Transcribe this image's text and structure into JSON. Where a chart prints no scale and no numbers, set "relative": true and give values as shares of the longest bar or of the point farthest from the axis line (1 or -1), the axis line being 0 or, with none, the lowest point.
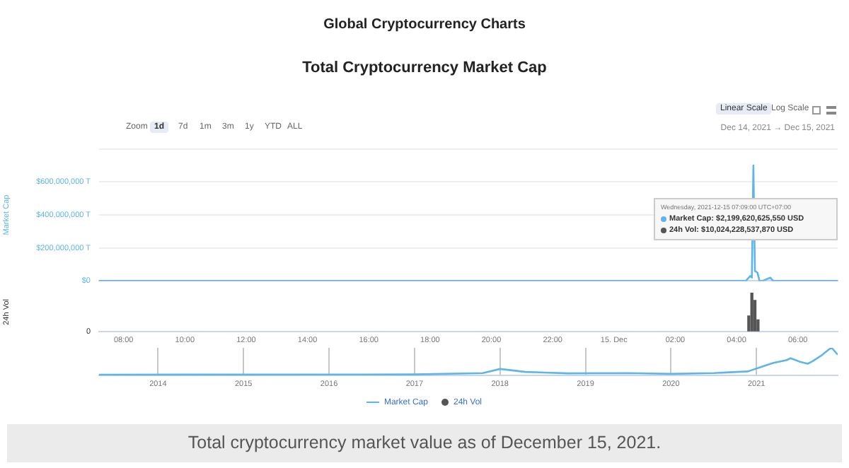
{
  "chart_data": [
    {
      "type": "line",
      "title": "Global Cryptocurrency Charts",
      "subtitle": "Total Cryptocurrency Market Cap",
      "ylabel": "Market Cap",
      "annotations": [
        "Zoom",
        "1d",
        "7d",
        "1m",
        "3m",
        "1y",
        "YTD",
        "ALL",
        "Linear Scale",
        "Log Scale",
        "Dec 14, 2021 → Dec 15, 2021",
        "Wednesday, 2021-12-15 07:09:00 UTC+07:00",
        "Market Cap: $2,199,620,625,550 USD",
        "24h Vol: $10,024,228,537,870 USD",
        "Total cryptocurrency market value as of December 15, 2021."
      ],
      "x": [
        "2021-12-14T07:12",
        "2021-12-15T04:18",
        "2021-12-15T04:27",
        "2021-12-15T04:30",
        "2021-12-15T04:33",
        "2021-12-15T04:36",
        "2021-12-15T04:41",
        "2021-12-15T04:45",
        "2021-12-15T04:51",
        "2021-12-15T05:06",
        "2021-12-15T05:12",
        "2021-12-15T07:18"
      ],
      "series": [
        {
          "name": "Market Cap",
          "color": "#5fb5e8",
          "values": [
            0,
            0,
            30000000,
            20000000,
            700000000,
            60000000,
            50000000,
            0,
            0,
            20000000,
            0,
            0
          ]
        }
      ],
      "xlim": [
        "2021-12-14T07:12",
        "2021-12-15T07:18"
      ],
      "ylim": [
        0,
        800000000
      ],
      "xticks": [
        {
          "value": "2021-12-14T08:00",
          "label": null
        },
        {
          "value": "2021-12-14T10:00",
          "label": null
        },
        {
          "value": "2021-12-14T12:00",
          "label": null
        },
        {
          "value": "2021-12-14T14:00",
          "label": null
        },
        {
          "value": "2021-12-14T16:00",
          "label": null
        },
        {
          "value": "2021-12-14T18:00",
          "label": null
        },
        {
          "value": "2021-12-14T20:00",
          "label": null
        },
        {
          "value": "2021-12-14T22:00",
          "label": null
        },
        {
          "value": "2021-12-15T00:00",
          "label": null
        },
        {
          "value": "2021-12-15T02:00",
          "label": null
        },
        {
          "value": "2021-12-15T04:00",
          "label": null
        },
        {
          "value": "2021-12-15T06:00",
          "label": null
        }
      ],
      "yticks": [
        {
          "value": 0,
          "label": "$0"
        },
        {
          "value": 200000000,
          "label": "$200,000,000 T"
        },
        {
          "value": 400000000,
          "label": "$400,000,000 T"
        },
        {
          "value": 600000000,
          "label": "$600,000,000 T"
        },
        {
          "value": 800000000,
          "label": null
        }
      ],
      "grid": "y",
      "legend": "bottom",
      "tick_labels": "y",
      "marker": "none"
    },
    {
      "type": "bar",
      "ylabel": "24h Vol",
      "relative": true,
      "annotations": [
        "0"
      ],
      "x": [
        "2021-12-15T04:24",
        "2021-12-15T04:30",
        "2021-12-15T04:36",
        "2021-12-15T04:42"
      ],
      "series": [
        {
          "name": "24h Vol",
          "color": "#555555",
          "values": [
            0.4,
            1,
            0.8,
            0.3
          ]
        }
      ],
      "xlim": [
        "2021-12-14T07:12",
        "2021-12-15T07:18"
      ],
      "xticks": [
        {
          "value": "2021-12-14T08:00",
          "label": "08:00"
        },
        {
          "value": "2021-12-14T10:00",
          "label": "10:00"
        },
        {
          "value": "2021-12-14T12:00",
          "label": "12:00"
        },
        {
          "value": "2021-12-14T14:00",
          "label": "14:00"
        },
        {
          "value": "2021-12-14T16:00",
          "label": "16:00"
        },
        {
          "value": "2021-12-14T18:00",
          "label": "18:00"
        },
        {
          "value": "2021-12-14T20:00",
          "label": "20:00"
        },
        {
          "value": "2021-12-14T22:00",
          "label": "22:00"
        },
        {
          "value": "2021-12-15T00:00",
          "label": "15. Dec"
        },
        {
          "value": "2021-12-15T02:00",
          "label": "02:00"
        },
        {
          "value": "2021-12-15T04:00",
          "label": "04:00"
        },
        {
          "value": "2021-12-15T06:00",
          "label": "06:00"
        }
      ],
      "legend": "bottom"
    },
    {
      "type": "line",
      "relative": true,
      "x": [
        2013.31,
        2017.0,
        2017.8,
        2018.0,
        2018.3,
        2018.8,
        2019.5,
        2020.0,
        2020.5,
        2020.9,
        2021.05,
        2021.2,
        2021.35,
        2021.4,
        2021.5,
        2021.6,
        2021.65,
        2021.75,
        2021.85,
        2021.88,
        2021.95
      ],
      "series": [
        {
          "color": "#5fb5e8",
          "values": [
            0.02,
            0.03,
            0.08,
            0.23,
            0.12,
            0.07,
            0.08,
            0.05,
            0.08,
            0.14,
            0.3,
            0.45,
            0.55,
            0.62,
            0.5,
            0.42,
            0.5,
            0.7,
            0.95,
            1,
            0.75
          ]
        }
      ],
      "xlim": [
        2013.31,
        2021.95
      ],
      "xticks": [
        2014,
        2015,
        2016,
        2017,
        2018,
        2019,
        2020,
        2021
      ],
      "grid": "x",
      "marker": "none"
    }
  ]
}
